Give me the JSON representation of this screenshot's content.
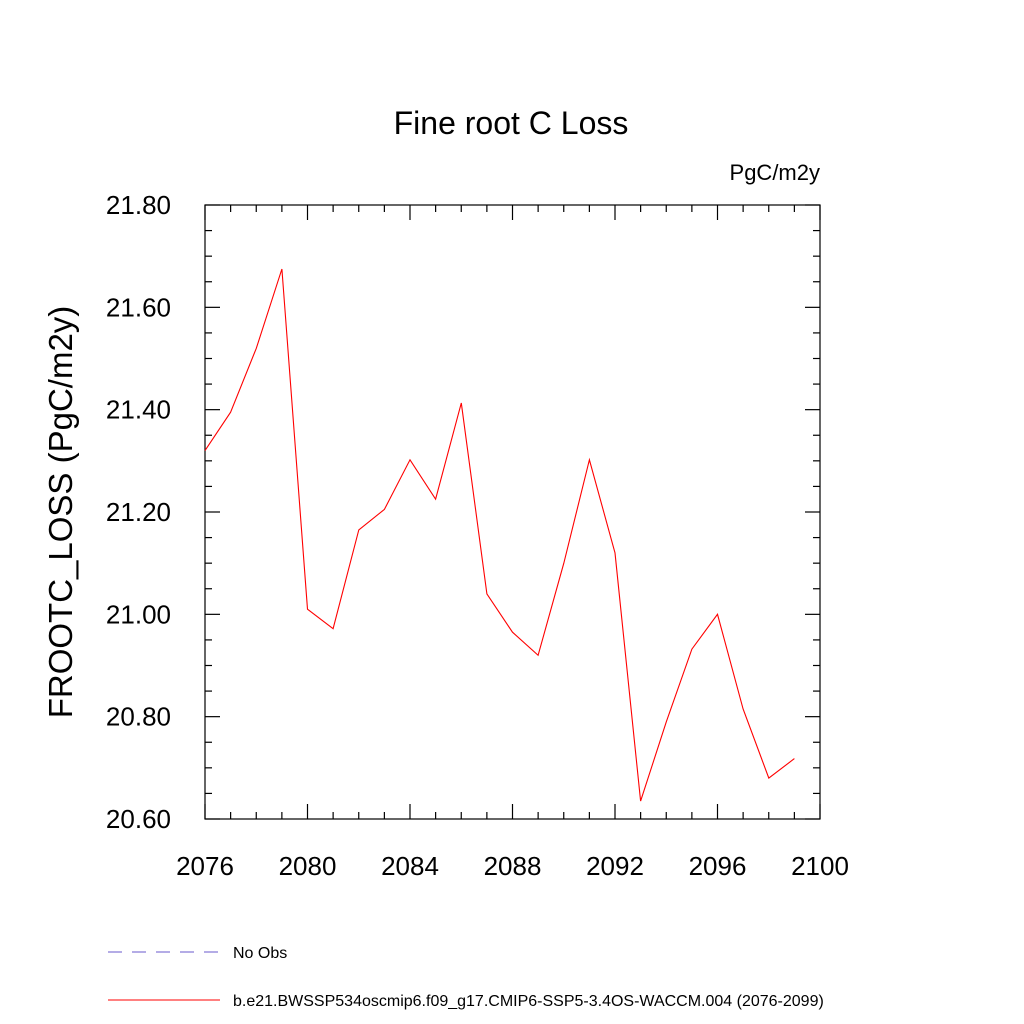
{
  "chart_data": {
    "type": "line",
    "title": "Fine root C Loss",
    "unit_label": "PgC/m2y",
    "xlabel": "",
    "ylabel": "FROOTC_LOSS  (PgC/m2y)",
    "xlim": [
      2076,
      2100
    ],
    "ylim": [
      20.6,
      21.8
    ],
    "x_ticks": [
      2076,
      2080,
      2084,
      2088,
      2092,
      2096,
      2100
    ],
    "x_minor_step": 1,
    "y_ticks": [
      20.6,
      20.8,
      21.0,
      21.2,
      21.4,
      21.6,
      21.8
    ],
    "y_tick_labels": [
      "20.60",
      "20.80",
      "21.00",
      "21.20",
      "21.40",
      "21.60",
      "21.80"
    ],
    "y_minor_step": 0.05,
    "grid": false,
    "legend_position": "bottom-left",
    "legend": [
      {
        "label": "No Obs",
        "color": "#6a5acd",
        "dash": "dashed"
      },
      {
        "label": "b.e21.BWSSP534oscmip6.f09_g17.CMIP6-SSP5-3.4OS-WACCM.004 (2076-2099)",
        "color": "#ff0000",
        "dash": "solid"
      }
    ],
    "series": [
      {
        "name": "b.e21.BWSSP534oscmip6.f09_g17.CMIP6-SSP5-3.4OS-WACCM.004 (2076-2099)",
        "color": "#ff0000",
        "x": [
          2076,
          2077,
          2078,
          2079,
          2080,
          2081,
          2082,
          2083,
          2084,
          2085,
          2086,
          2087,
          2088,
          2089,
          2090,
          2091,
          2092,
          2093,
          2094,
          2095,
          2096,
          2097,
          2098,
          2099
        ],
        "y": [
          21.32,
          21.395,
          21.52,
          21.675,
          21.01,
          20.972,
          21.165,
          21.205,
          21.302,
          21.225,
          21.413,
          21.04,
          20.965,
          20.92,
          21.1,
          21.302,
          21.12,
          20.635,
          20.79,
          20.932,
          21.0,
          20.815,
          20.68,
          20.718
        ]
      }
    ]
  }
}
